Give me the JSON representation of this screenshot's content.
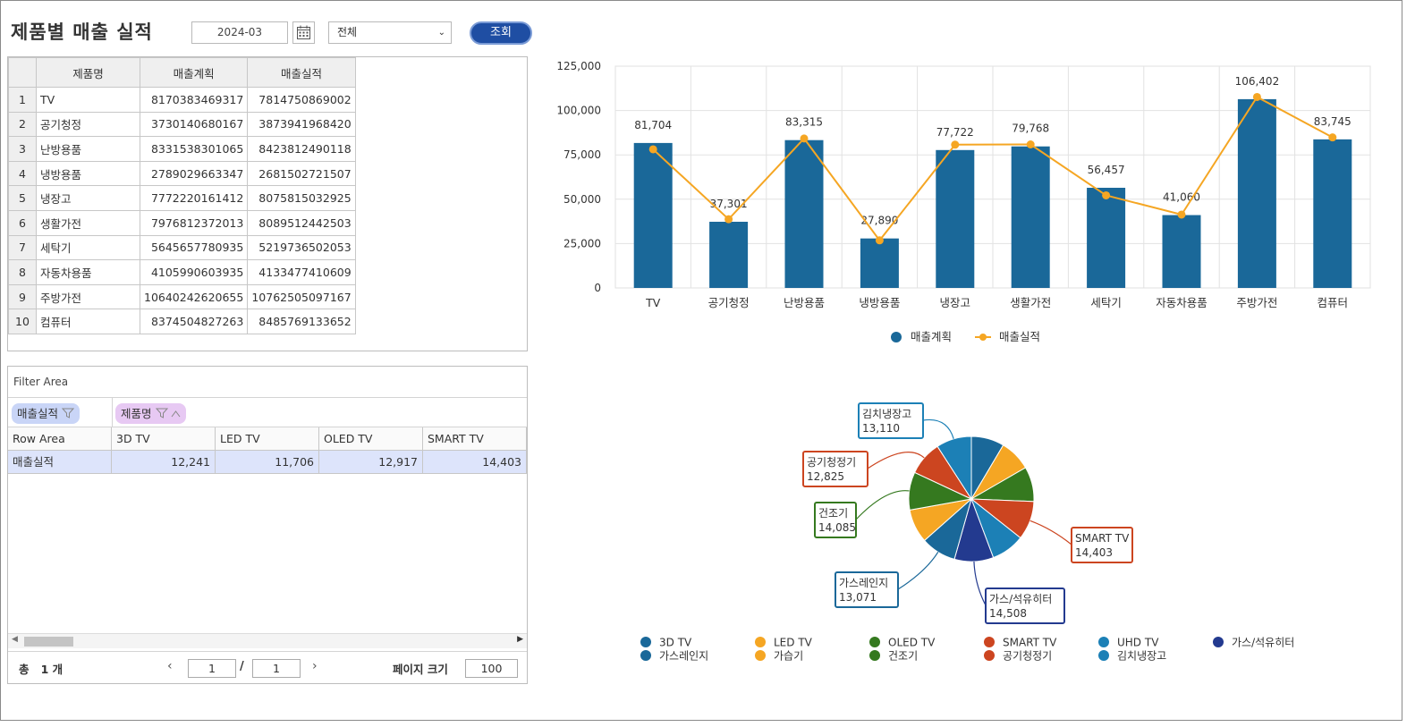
{
  "header": {
    "title": "제품별 매출 실적",
    "month": "2024-03",
    "category": "전체",
    "search_label": "조회"
  },
  "grid": {
    "columns": [
      "제품명",
      "매출계획",
      "매출실적"
    ],
    "rows": [
      {
        "no": "1",
        "name": "TV",
        "plan": "8170383469317",
        "actual": "7814750869002"
      },
      {
        "no": "2",
        "name": "공기청정",
        "plan": "3730140680167",
        "actual": "3873941968420"
      },
      {
        "no": "3",
        "name": "난방용품",
        "plan": "8331538301065",
        "actual": "8423812490118"
      },
      {
        "no": "4",
        "name": "냉방용품",
        "plan": "2789029663347",
        "actual": "2681502721507"
      },
      {
        "no": "5",
        "name": "냉장고",
        "plan": "7772220161412",
        "actual": "8075815032925"
      },
      {
        "no": "6",
        "name": "생활가전",
        "plan": "7976812372013",
        "actual": "8089512442503"
      },
      {
        "no": "7",
        "name": "세탁기",
        "plan": "5645657780935",
        "actual": "5219736502053"
      },
      {
        "no": "8",
        "name": "자동차용품",
        "plan": "4105990603935",
        "actual": "4133477410609"
      },
      {
        "no": "9",
        "name": "주방가전",
        "plan": "10640242620655",
        "actual": "10762505097167"
      },
      {
        "no": "10",
        "name": "컴퓨터",
        "plan": "8374504827263",
        "actual": "8485769133652"
      }
    ]
  },
  "pivot": {
    "filter_area": "Filter Area",
    "pill_value": "매출실적",
    "pill_column": "제품명",
    "row_area": "Row Area",
    "columns": [
      "3D TV",
      "LED TV",
      "OLED TV",
      "SMART TV"
    ],
    "row_label": "매출실적",
    "values": [
      "12,241",
      "11,706",
      "12,917",
      "14,403"
    ]
  },
  "pager": {
    "total_prefix": "총",
    "total_count": "1 개",
    "page": "1",
    "page_total": "1",
    "page_size_label": "페이지 크기",
    "page_size": "100"
  },
  "colors": {
    "bar": "#1a6899",
    "line": "#f5a623",
    "brand_button": "#1f4ea3"
  },
  "chart_data": [
    {
      "type": "bar",
      "categories": [
        "TV",
        "공기청정",
        "난방용품",
        "냉방용품",
        "냉장고",
        "생활가전",
        "세탁기",
        "자동차용품",
        "주방가전",
        "컴퓨터"
      ],
      "series": [
        {
          "name": "매출계획",
          "kind": "bar",
          "values": [
            81704,
            37301,
            83315,
            27890,
            77722,
            79768,
            56457,
            41060,
            106402,
            83745
          ]
        },
        {
          "name": "매출실적",
          "kind": "line",
          "values": [
            78148,
            38739,
            84238,
            26815,
            80758,
            80895,
            52197,
            41335,
            107625,
            84858
          ]
        }
      ],
      "data_labels": [
        "81,704",
        "37,301",
        "83,315",
        "27,890",
        "77,722",
        "79,768",
        "56,457",
        "41,060",
        "106,402",
        "83,745"
      ],
      "yticks": [
        "0",
        "25,000",
        "50,000",
        "75,000",
        "100,000",
        "125,000"
      ],
      "ylim": [
        0,
        125000
      ],
      "grid": true,
      "legend": "bottom"
    },
    {
      "type": "pie",
      "slices": [
        {
          "name": "3D TV",
          "value": 12241,
          "color": "#1a6899"
        },
        {
          "name": "LED TV",
          "value": 11706,
          "color": "#f5a623"
        },
        {
          "name": "OLED TV",
          "value": 12917,
          "color": "#35791f"
        },
        {
          "name": "SMART TV",
          "value": 14403,
          "color": "#cc4520"
        },
        {
          "name": "UHD TV",
          "value": 12400,
          "color": "#1c80b6"
        },
        {
          "name": "가스/석유히터",
          "value": 14508,
          "color": "#233a8f"
        },
        {
          "name": "가스레인지",
          "value": 13071,
          "color": "#1a6899"
        },
        {
          "name": "가습기",
          "value": 12500,
          "color": "#f5a623"
        },
        {
          "name": "건조기",
          "value": 14085,
          "color": "#35791f"
        },
        {
          "name": "공기청정기",
          "value": 12825,
          "color": "#cc4520"
        },
        {
          "name": "김치냉장고",
          "value": 13110,
          "color": "#1c80b6"
        }
      ],
      "callouts": [
        {
          "name": "SMART TV",
          "value": "14,403"
        },
        {
          "name": "가스/석유히터",
          "value": "14,508"
        },
        {
          "name": "가스레인지",
          "value": "13,071"
        },
        {
          "name": "건조기",
          "value": "14,085"
        },
        {
          "name": "공기청정기",
          "value": "12,825"
        },
        {
          "name": "김치냉장고",
          "value": "13,110"
        }
      ],
      "legend": "bottom"
    }
  ]
}
